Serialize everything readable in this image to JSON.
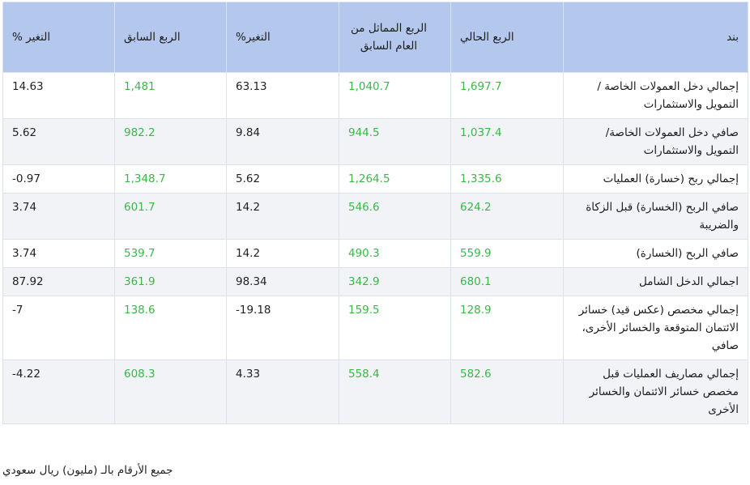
{
  "headers": {
    "item": "بند",
    "current_q": "الربع الحالي",
    "same_q_last_year": "الربع المماثل من العام السابق",
    "change1": "التغير%",
    "prev_q": "الربع السابق",
    "change2": "التغير %"
  },
  "rows": [
    {
      "item": "إجمالي دخل العمولات الخاصة / التمويل والاستثمارات",
      "current": "1,697.7",
      "same": "1,040.7",
      "chg1": "63.13",
      "prev": "1,481",
      "chg2": "14.63"
    },
    {
      "item": "صافي دخل العمولات الخاصة/ التمويل والاستثمارات",
      "current": "1,037.4",
      "same": "944.5",
      "chg1": "9.84",
      "prev": "982.2",
      "chg2": "5.62"
    },
    {
      "item": "إجمالي ربح (خسارة) العمليات",
      "current": "1,335.6",
      "same": "1,264.5",
      "chg1": "5.62",
      "prev": "1,348.7",
      "chg2": "0.97-"
    },
    {
      "item": "صافي الربح (الخسارة) قبل الزكاة والضريبة",
      "current": "624.2",
      "same": "546.6",
      "chg1": "14.2",
      "prev": "601.7",
      "chg2": "3.74"
    },
    {
      "item": "صافي الربح (الخسارة)",
      "current": "559.9",
      "same": "490.3",
      "chg1": "14.2",
      "prev": "539.7",
      "chg2": "3.74"
    },
    {
      "item": "اجمالي الدخل الشامل",
      "current": "680.1",
      "same": "342.9",
      "chg1": "98.34",
      "prev": "361.9",
      "chg2": "87.92"
    },
    {
      "item": "إجمالي مخصص (عكس قيد) خسائر الائتمان المتوقعة والخسائر الأخرى، صافي",
      "current": "128.9",
      "same": "159.5",
      "chg1": "19.18-",
      "prev": "138.6",
      "chg2": "7-"
    },
    {
      "item": "إجمالي مصاريف العمليات قبل مخصص خسائر الائتمان والخسائر الأخرى",
      "current": "582.6",
      "same": "558.4",
      "chg1": "4.33",
      "prev": "608.3",
      "chg2": "4.22-"
    }
  ],
  "footnote": "جميع الأرقام بالـ (مليون) ريال سعودي",
  "colors": {
    "header_bg": "#b4c8ee",
    "value_green": "#3bb74a",
    "row_alt_bg": "#f1f3f6"
  }
}
